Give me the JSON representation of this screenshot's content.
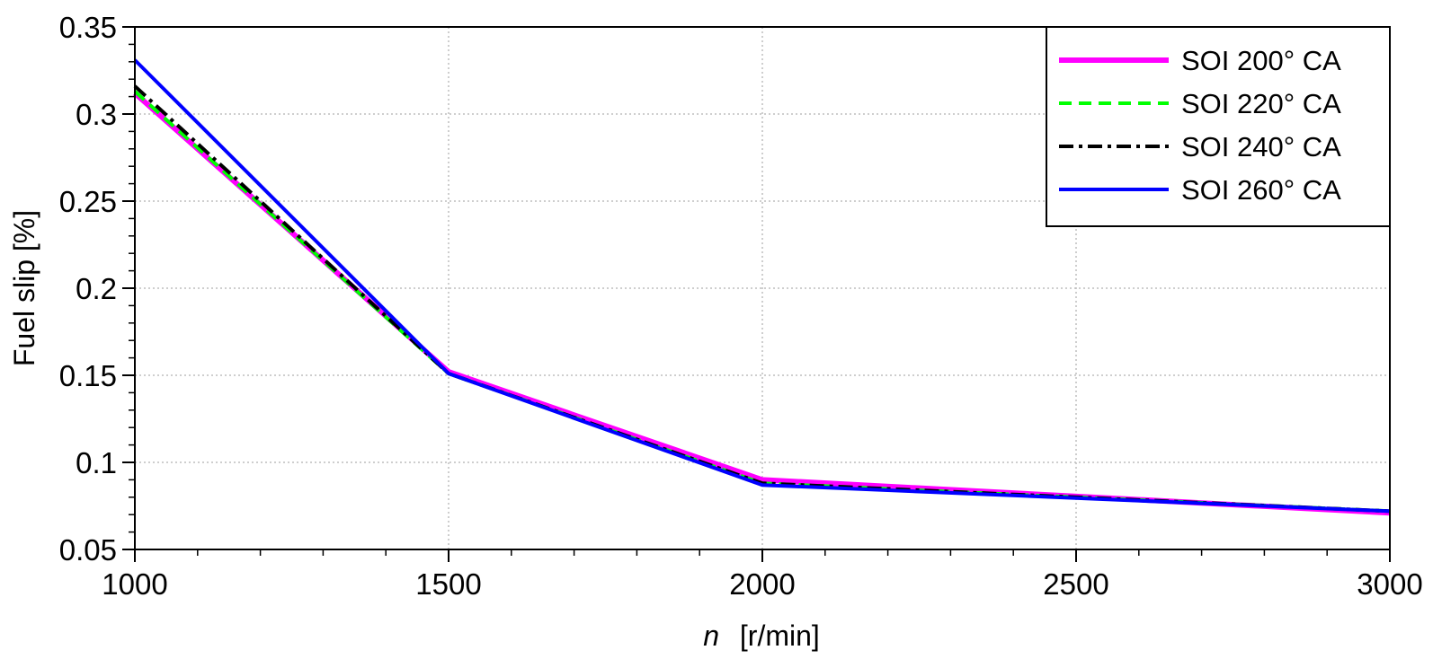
{
  "chart_data": {
    "type": "line",
    "title": "",
    "xlabel": "n [r/min]",
    "xlabel_symbol": "n",
    "xlabel_unit": "[r/min]",
    "ylabel": "Fuel slip [%]",
    "xlim": [
      1000,
      3000
    ],
    "ylim": [
      0.05,
      0.35
    ],
    "xticks": [
      1000,
      1500,
      2000,
      2500,
      3000
    ],
    "xtick_labels": [
      "1000",
      "1500",
      "2000",
      "2500",
      "3000"
    ],
    "yticks": [
      0.05,
      0.1,
      0.15,
      0.2,
      0.25,
      0.3,
      0.35
    ],
    "ytick_labels": [
      "0.05",
      "0.1",
      "0.15",
      "0.2",
      "0.25",
      "0.3",
      "0.35"
    ],
    "grid": true,
    "legend_position": "top-right",
    "x": [
      1000,
      1500,
      2000,
      3000
    ],
    "series": [
      {
        "name": "SOI 200° CA",
        "values": [
          0.312,
          0.152,
          0.09,
          0.071
        ],
        "color": "#ff00ff",
        "style": "solid-thick"
      },
      {
        "name": "SOI 220° CA",
        "values": [
          0.313,
          0.151,
          0.088,
          0.072
        ],
        "color": "#00ff00",
        "style": "dashed"
      },
      {
        "name": "SOI 240° CA",
        "values": [
          0.316,
          0.151,
          0.088,
          0.072
        ],
        "color": "#000000",
        "style": "dash-dot"
      },
      {
        "name": "SOI 260° CA",
        "values": [
          0.331,
          0.151,
          0.087,
          0.072
        ],
        "color": "#0000ff",
        "style": "solid"
      }
    ]
  }
}
